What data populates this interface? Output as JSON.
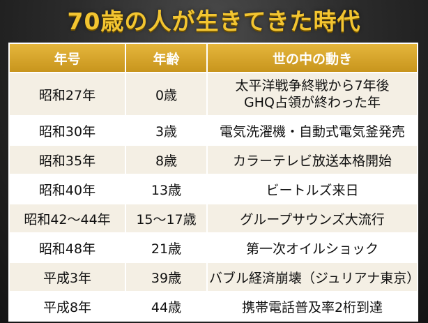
{
  "title": "70歳の人が生きてきた時代",
  "table": {
    "headers": [
      "年号",
      "年齢",
      "世の中の動き"
    ],
    "rows": [
      {
        "era": "昭和27年",
        "age": "0歳",
        "event": [
          "太平洋戦争終戦から7年後",
          "GHQ占領が終わった年"
        ]
      },
      {
        "era": "昭和30年",
        "age": "3歳",
        "event": [
          "電気洗濯機・自動式電気釜発売"
        ]
      },
      {
        "era": "昭和35年",
        "age": "8歳",
        "event": [
          "カラーテレビ放送本格開始"
        ]
      },
      {
        "era": "昭和40年",
        "age": "13歳",
        "event": [
          "ビートルズ来日"
        ]
      },
      {
        "era": "昭和42～44年",
        "age": "15～17歳",
        "event": [
          "グループサウンズ大流行"
        ]
      },
      {
        "era": "昭和48年",
        "age": "21歳",
        "event": [
          "第一次オイルショック"
        ]
      },
      {
        "era": "平成3年",
        "age": "39歳",
        "event": [
          "バブル経済崩壊（ジュリアナ東京）"
        ]
      },
      {
        "era": "平成8年",
        "age": "44歳",
        "event": [
          "携帯電話普及率2桁到達"
        ]
      }
    ]
  }
}
